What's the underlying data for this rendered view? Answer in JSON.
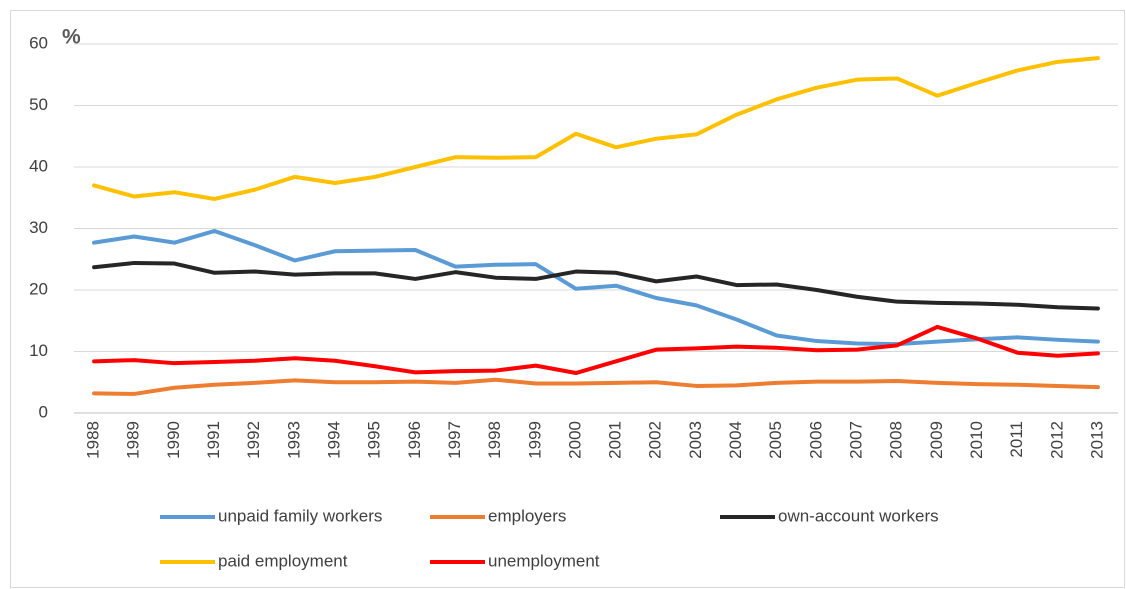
{
  "chart_data": {
    "type": "line",
    "y_label": "%",
    "categories": [
      "1988",
      "1989",
      "1990",
      "1991",
      "1992",
      "1993",
      "1994",
      "1995",
      "1996",
      "1997",
      "1998",
      "1999",
      "2000",
      "2001",
      "2002",
      "2003",
      "2004",
      "2005",
      "2006",
      "2007",
      "2008",
      "2009",
      "2010",
      "2011",
      "2012",
      "2013"
    ],
    "series": [
      {
        "name": "unpaid family workers",
        "color": "#5b9bd5",
        "values": [
          27.7,
          28.7,
          27.7,
          29.6,
          27.3,
          24.8,
          26.3,
          26.4,
          26.5,
          23.8,
          24.1,
          24.2,
          20.2,
          20.7,
          18.7,
          17.5,
          15.2,
          12.6,
          11.7,
          11.3,
          11.2,
          11.6,
          12.0,
          12.3,
          11.9,
          11.6
        ]
      },
      {
        "name": "employers",
        "color": "#ed7d31",
        "values": [
          3.2,
          3.1,
          4.1,
          4.6,
          4.9,
          5.3,
          5.0,
          5.0,
          5.1,
          4.9,
          5.4,
          4.8,
          4.8,
          4.9,
          5.0,
          4.4,
          4.5,
          4.9,
          5.1,
          5.1,
          5.2,
          4.9,
          4.7,
          4.6,
          4.4,
          4.2
        ]
      },
      {
        "name": "own-account workers",
        "color": "#262626",
        "values": [
          23.7,
          24.4,
          24.3,
          22.8,
          23.0,
          22.5,
          22.7,
          22.7,
          21.8,
          22.9,
          22.0,
          21.8,
          23.0,
          22.8,
          21.4,
          22.2,
          20.8,
          20.9,
          20.0,
          18.9,
          18.1,
          17.9,
          17.8,
          17.6,
          17.2,
          17.0
        ]
      },
      {
        "name": "paid employment",
        "color": "#ffc000",
        "values": [
          37.0,
          35.2,
          35.9,
          34.8,
          36.3,
          38.4,
          37.4,
          38.4,
          40.0,
          41.6,
          41.5,
          41.6,
          45.4,
          43.2,
          44.6,
          45.3,
          48.5,
          51.0,
          52.9,
          54.2,
          54.4,
          51.6,
          53.7,
          55.7,
          57.1,
          57.7
        ]
      },
      {
        "name": "unemployment",
        "color": "#ff0000",
        "values": [
          8.4,
          8.6,
          8.1,
          8.3,
          8.5,
          8.9,
          8.5,
          7.6,
          6.6,
          6.8,
          6.9,
          7.7,
          6.5,
          8.4,
          10.3,
          10.5,
          10.8,
          10.6,
          10.2,
          10.3,
          11.0,
          14.0,
          12.1,
          9.8,
          9.3,
          9.7
        ]
      }
    ],
    "ylim": [
      0,
      60
    ],
    "yticks": [
      0,
      10,
      20,
      30,
      40,
      50,
      60
    ],
    "grid": true,
    "legend": "bottom"
  }
}
